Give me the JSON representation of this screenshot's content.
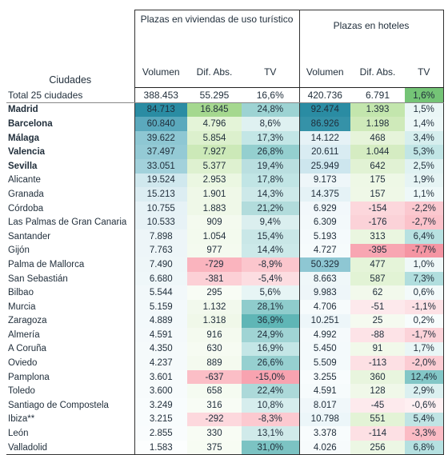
{
  "table": {
    "city_header": "Ciudades",
    "group1_title": "Plazas en viviendas de uso turístico",
    "group2_title": "Plazas en hoteles",
    "sub_headers": {
      "g1": [
        "Volumen",
        "Dif. Abs.",
        "TV"
      ],
      "g2": [
        "Volumen",
        "Dif. Abs.",
        "TV"
      ]
    },
    "total": {
      "city": "Total 25 ciudades",
      "v1": "388.453",
      "d1": "55.295",
      "t1": "16,6%",
      "v2": "420.736",
      "d2": "6.791",
      "t2": "1,6%",
      "c": [
        "#ffffff",
        "#ffffff",
        "#ffffff",
        "#ffffff",
        "#ffffff",
        "#74c476"
      ]
    },
    "rows": [
      {
        "city": "Madrid",
        "v1": "84.713",
        "d1": "16.845",
        "t1": "24,8%",
        "v2": "92.474",
        "d2": "1.393",
        "t2": "1,5%",
        "c": [
          "#2a8ca3",
          "#a5d88f",
          "#9dd3d3",
          "#2a8ca3",
          "#c3e6ad",
          "#eaf6f6"
        ]
      },
      {
        "city": "Barcelona",
        "v1": "60.840",
        "d1": "4.796",
        "t1": "8,6%",
        "v2": "86.926",
        "d2": "1.198",
        "t2": "1,4%",
        "c": [
          "#5ba9bd",
          "#e4f4d8",
          "#dff1f1",
          "#3592a8",
          "#cfeaba",
          "#ecf7f7"
        ]
      },
      {
        "city": "Málaga",
        "v1": "39.622",
        "d1": "5.854",
        "t1": "17,3%",
        "v2": "14.122",
        "d2": "468",
        "t2": "3,4%",
        "c": [
          "#8ec7d3",
          "#dcf0cd",
          "#c3e6e6",
          "#e6f2f6",
          "#e6f4da",
          "#d6eeee"
        ]
      },
      {
        "city": "Valencia",
        "v1": "37.497",
        "d1": "7.927",
        "t1": "26,8%",
        "v2": "20.611",
        "d2": "1.044",
        "t2": "5,3%",
        "c": [
          "#94cad5",
          "#cce9b8",
          "#94cfcf",
          "#d9ecf2",
          "#d5ecc2",
          "#c1e5e5"
        ]
      },
      {
        "city": "Sevilla",
        "v1": "33.051",
        "d1": "5.377",
        "t1": "19,4%",
        "v2": "25.949",
        "d2": "642",
        "t2": "2,5%",
        "c": [
          "#a2d1db",
          "#def1d0",
          "#badfe0",
          "#cde6ee",
          "#e1f2d4",
          "#e0f2f2"
        ]
      },
      {
        "city": "Alicante",
        "v1": "19.524",
        "d1": "2.953",
        "t1": "17,8%",
        "v2": "9.173",
        "d2": "175",
        "t2": "1,9%",
        "c": [
          "#d0e8ee",
          "#ebf7e2",
          "#c1e5e5",
          "#eef6f9",
          "#eef8e6",
          "#e6f4f4"
        ]
      },
      {
        "city": "Granada",
        "v1": "15.213",
        "d1": "1.901",
        "t1": "14,3%",
        "v2": "14.375",
        "d2": "157",
        "t2": "1,1%",
        "c": [
          "#dcedf2",
          "#eff8e8",
          "#cde9e9",
          "#e5f2f6",
          "#eff8e7",
          "#eef8f8"
        ]
      },
      {
        "city": "Córdoba",
        "v1": "10.755",
        "d1": "1.883",
        "t1": "21,2%",
        "v2": "6.929",
        "d2": "-154",
        "t2": "-2,2%",
        "c": [
          "#e6f2f6",
          "#eff8e8",
          "#b2dcdc",
          "#f2f8fb",
          "#fcd7dc",
          "#fbc8cf"
        ]
      },
      {
        "city": "Las Palmas de Gran Canaria",
        "v1": "10.533",
        "d1": "909",
        "t1": "9,4%",
        "v2": "6.309",
        "d2": "-176",
        "t2": "-2,7%",
        "c": [
          "#e7f2f6",
          "#f4faef",
          "#dbefef",
          "#f3f9fb",
          "#fbd2d8",
          "#fbc2ca"
        ]
      },
      {
        "city": "Santander",
        "v1": "7.898",
        "d1": "1.054",
        "t1": "15,4%",
        "v2": "5.193",
        "d2": "313",
        "t2": "6,4%",
        "c": [
          "#edf5f8",
          "#f3faee",
          "#c9e7e7",
          "#f5fafc",
          "#eaf6e0",
          "#b8e1e1"
        ]
      },
      {
        "city": "Gijón",
        "v1": "7.763",
        "d1": "977",
        "t1": "14,4%",
        "v2": "4.727",
        "d2": "-395",
        "t2": "-7,7%",
        "c": [
          "#edf5f8",
          "#f4faef",
          "#cce9e9",
          "#f6fbfc",
          "#f8a6b2",
          "#f595a3"
        ]
      },
      {
        "city": "Palma de Mallorca",
        "v1": "7.490",
        "d1": "-729",
        "t1": "-8,9%",
        "v2": "50.329",
        "d2": "477",
        "t2": "1,0%",
        "c": [
          "#eef6f8",
          "#fab4be",
          "#fbc6cd",
          "#8ec7d3",
          "#e5f4d9",
          "#eff8f8"
        ]
      },
      {
        "city": "San Sebastián",
        "v1": "6.680",
        "d1": "-381",
        "t1": "-5,4%",
        "v2": "8.663",
        "d2": "587",
        "t2": "7,3%",
        "c": [
          "#eff7f9",
          "#fcd0d6",
          "#fcdde1",
          "#eff7f9",
          "#e2f3d5",
          "#b1dede"
        ]
      },
      {
        "city": "Bilbao",
        "v1": "5.544",
        "d1": "295",
        "t1": "5,6%",
        "v2": "9.983",
        "d2": "62",
        "t2": "0,6%",
        "c": [
          "#f2f8fa",
          "#f8fcf5",
          "#e7f5f5",
          "#eef6f9",
          "#f2f9ec",
          "#f3fafa"
        ]
      },
      {
        "city": "Murcia",
        "v1": "5.159",
        "d1": "1.132",
        "t1": "28,1%",
        "v2": "4.706",
        "d2": "-51",
        "t2": "-1,1%",
        "c": [
          "#f3f9fb",
          "#f2f9ed",
          "#8fcccc",
          "#f6fbfc",
          "#fde9ec",
          "#fde1e5"
        ]
      },
      {
        "city": "Zaragoza",
        "v1": "4.889",
        "d1": "1.318",
        "t1": "36,9%",
        "v2": "10.251",
        "d2": "25",
        "t2": "0,2%",
        "c": [
          "#f3f9fb",
          "#f0f8e9",
          "#5fb6b6",
          "#edf6f9",
          "#f5faf0",
          "#f7fcfc"
        ]
      },
      {
        "city": "Almería",
        "v1": "4.591",
        "d1": "916",
        "t1": "24,9%",
        "v2": "4.992",
        "d2": "-88",
        "t2": "-1,7%",
        "c": [
          "#f4f9fb",
          "#f4faef",
          "#a0d4d4",
          "#f5fafc",
          "#fde3e7",
          "#fcd3d9"
        ]
      },
      {
        "city": "A Coruña",
        "v1": "4.350",
        "d1": "630",
        "t1": "16,9%",
        "v2": "5.450",
        "d2": "91",
        "t2": "1,7%",
        "c": [
          "#f5fafb",
          "#f6fbf2",
          "#c4e6e6",
          "#f4fafc",
          "#f1f9ea",
          "#e9f6f6"
        ]
      },
      {
        "city": "Oviedo",
        "v1": "4.237",
        "d1": "889",
        "t1": "26,6%",
        "v2": "5.509",
        "d2": "-113",
        "t2": "-2,0%",
        "c": [
          "#f5fafb",
          "#f4faef",
          "#96d0d0",
          "#f4fafc",
          "#fde0e4",
          "#fcccd3"
        ]
      },
      {
        "city": "Pamplona",
        "v1": "3.601",
        "d1": "-637",
        "t1": "-15,0%",
        "v2": "3.255",
        "d2": "360",
        "t2": "12,4%",
        "c": [
          "#f7fbfc",
          "#fbbec6",
          "#f8a3b0",
          "#f8fcfd",
          "#e8f5de",
          "#83c7c7"
        ]
      },
      {
        "city": "Toledo",
        "v1": "3.600",
        "d1": "658",
        "t1": "22,4%",
        "v2": "4.591",
        "d2": "128",
        "t2": "2,9%",
        "c": [
          "#f7fbfc",
          "#f5fbf1",
          "#acd9d9",
          "#f6fbfc",
          "#f0f8e9",
          "#dbf0f0"
        ]
      },
      {
        "city": "Santiago de Compostela",
        "v1": "3.249",
        "d1": "316",
        "t1": "10,8%",
        "v2": "8.017",
        "d2": "-45",
        "t2": "-0,6%",
        "c": [
          "#f8fcfd",
          "#f8fcf5",
          "#d6eded",
          "#f0f7fa",
          "#fdeaed",
          "#feeff1"
        ]
      },
      {
        "city": "Ibiza**",
        "v1": "3.215",
        "d1": "-292",
        "t1": "-8,3%",
        "v2": "10.798",
        "d2": "551",
        "t2": "5,4%",
        "c": [
          "#f8fcfd",
          "#fdd8dd",
          "#fcc9d0",
          "#ecf6f9",
          "#e3f3d6",
          "#c0e4e4"
        ]
      },
      {
        "city": "León",
        "v1": "2.855",
        "d1": "330",
        "t1": "13,1%",
        "v2": "3.378",
        "d2": "-114",
        "t2": "-3,3%",
        "c": [
          "#f9fcfd",
          "#f8fcf4",
          "#d0eaea",
          "#f8fcfd",
          "#fde0e4",
          "#fbbbc4"
        ]
      },
      {
        "city": "Valladolid",
        "v1": "1.583",
        "d1": "375",
        "t1": "31,0%",
        "v2": "4.026",
        "d2": "256",
        "t2": "6,8%",
        "c": [
          "#fcfefe",
          "#f7fcf3",
          "#7cc3c3",
          "#f7fbfc",
          "#ecf7e4",
          "#b5e0e0"
        ]
      }
    ]
  }
}
